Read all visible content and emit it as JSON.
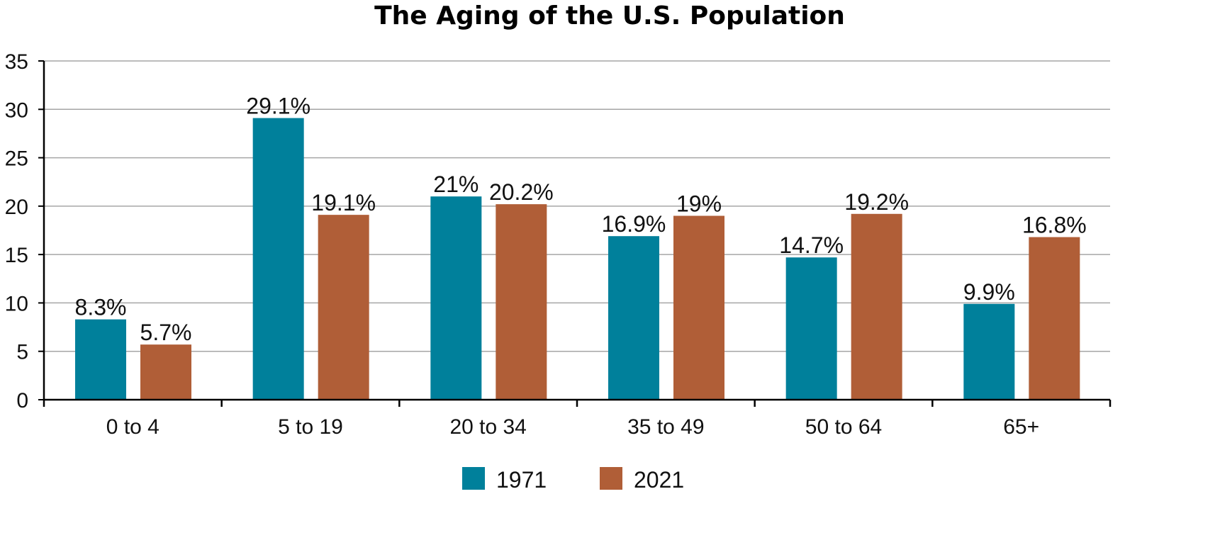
{
  "chart_data": {
    "type": "bar",
    "title": "The Aging of the U.S. Population",
    "xlabel": "",
    "ylabel": "",
    "categories": [
      "0 to 4",
      "5 to 19",
      "20 to 34",
      "35 to 49",
      "50 to 64",
      "65+"
    ],
    "series": [
      {
        "name": "1971",
        "color": "#00809b",
        "values": [
          8.3,
          29.1,
          21,
          16.9,
          14.7,
          9.9
        ],
        "labels": [
          "8.3%",
          "29.1%",
          "21%",
          "16.9%",
          "14.7%",
          "9.9%"
        ]
      },
      {
        "name": "2021",
        "color": "#b05e37",
        "values": [
          5.7,
          19.1,
          20.2,
          19,
          19.2,
          16.8
        ],
        "labels": [
          "5.7%",
          "19.1%",
          "20.2%",
          "19%",
          "19.2%",
          "16.8%"
        ]
      }
    ],
    "ylim": [
      0,
      35
    ],
    "yticks": [
      0,
      5,
      10,
      15,
      20,
      25,
      30,
      35
    ],
    "grid": true,
    "legend_position": "bottom"
  }
}
